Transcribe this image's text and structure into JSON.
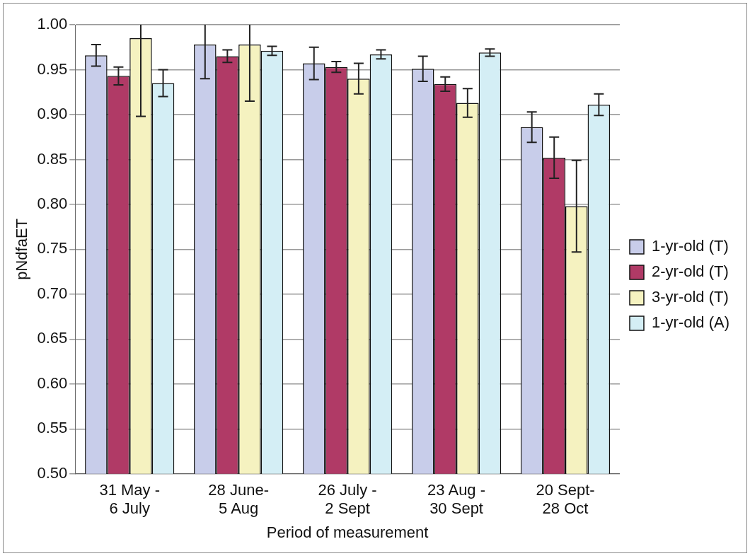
{
  "chart_data": {
    "type": "bar",
    "xlabel": "Period of measurement",
    "ylabel": "pNdfaET",
    "categories": [
      "31 May - 6 July",
      "28 June- 5 Aug",
      "26 July - 2 Sept",
      "23 Aug - 30 Sept",
      "20 Sept- 28 Oct"
    ],
    "series": [
      {
        "name": "1-yr-old (T)",
        "color": "#c8cdea",
        "values": [
          0.966,
          0.978,
          0.957,
          0.951,
          0.886
        ],
        "errors": [
          0.012,
          [
            0.94,
            1.0
          ],
          0.018,
          0.014,
          0.017
        ]
      },
      {
        "name": "2-yr-old (T)",
        "color": "#b03a66",
        "values": [
          0.943,
          0.965,
          0.953,
          0.934,
          0.852
        ],
        "errors": [
          0.01,
          0.007,
          0.006,
          0.008,
          0.023
        ]
      },
      {
        "name": "3-yr-old (T)",
        "color": "#f5f2c0",
        "values": [
          0.985,
          0.978,
          0.94,
          0.913,
          0.798
        ],
        "errors": [
          [
            0.898,
            1.0
          ],
          [
            0.915,
            1.0
          ],
          0.017,
          0.016,
          0.051
        ]
      },
      {
        "name": "1-yr-old (A)",
        "color": "#d4eef5",
        "values": [
          0.935,
          0.971,
          0.967,
          0.969,
          0.911
        ],
        "errors": [
          0.015,
          0.005,
          0.005,
          0.004,
          0.012
        ]
      }
    ],
    "ylim": [
      0.5,
      1.0
    ],
    "yticks": [
      {
        "value": 0.5,
        "label": "0.50"
      },
      0.55,
      {
        "value": 0.6,
        "label": "0.60"
      },
      0.65,
      {
        "value": 0.7,
        "label": "0.70"
      },
      0.75,
      {
        "value": 0.8,
        "label": "0.80"
      },
      0.85,
      {
        "value": 0.9,
        "label": "0.90"
      },
      0.95,
      {
        "value": 1.0,
        "label": "1.00"
      }
    ],
    "grid": "y",
    "legend": "right"
  }
}
